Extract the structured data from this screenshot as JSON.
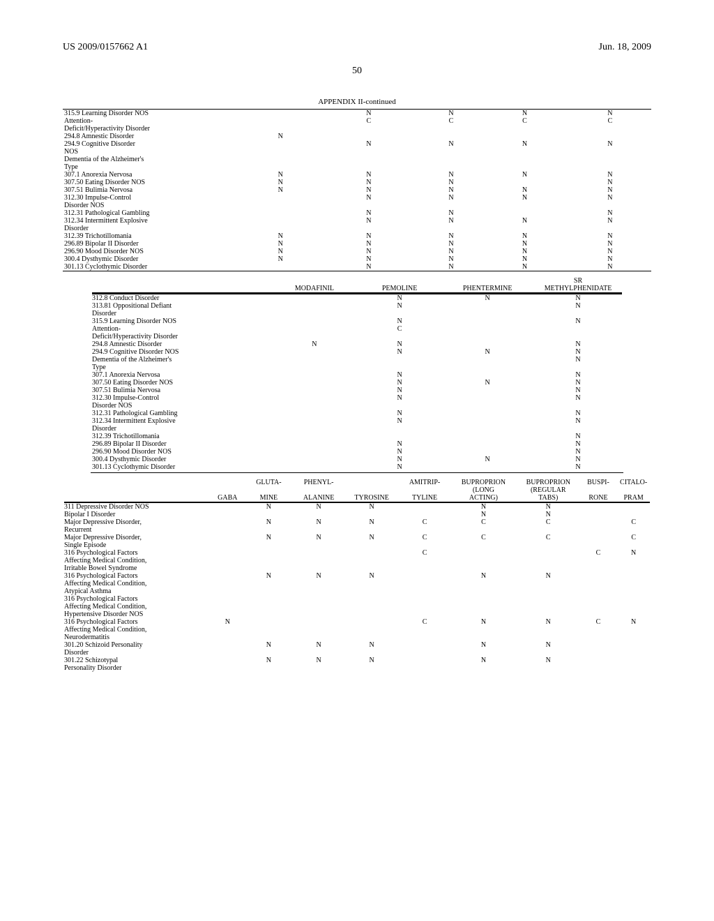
{
  "header": {
    "left": "US 2009/0157662 A1",
    "right": "Jun. 18, 2009"
  },
  "page_number": "50",
  "appendix_title": "APPENDIX II-continued",
  "table1": {
    "col_widths": [
      "31%",
      "12%",
      "18%",
      "10%",
      "15%",
      "14%"
    ],
    "rows": [
      {
        "d": "315.9 Learning Disorder NOS",
        "c": [
          "",
          "N",
          "N",
          "N",
          "N"
        ]
      },
      {
        "d": "Attention-",
        "c": [
          "",
          "C",
          "C",
          "C",
          "C"
        ]
      },
      {
        "d": "Deficit/Hyperactivity Disorder",
        "c": [
          "",
          "",
          "",
          "",
          ""
        ]
      },
      {
        "d": "294.8 Amnestic Disorder",
        "c": [
          "N",
          "",
          "",
          "",
          ""
        ]
      },
      {
        "d": "294.9 Cognitive Disorder",
        "c": [
          "",
          "N",
          "N",
          "N",
          "N"
        ]
      },
      {
        "d": "NOS",
        "c": [
          "",
          "",
          "",
          "",
          ""
        ]
      },
      {
        "d": "Dementia of the Alzheimer's",
        "c": [
          "",
          "",
          "",
          "",
          ""
        ]
      },
      {
        "d": "Type",
        "c": [
          "",
          "",
          "",
          "",
          ""
        ]
      },
      {
        "d": "307.1 Anorexia Nervosa",
        "c": [
          "N",
          "N",
          "N",
          "N",
          "N"
        ]
      },
      {
        "d": "307.50 Eating Disorder NOS",
        "c": [
          "N",
          "N",
          "N",
          "",
          "N"
        ]
      },
      {
        "d": "307.51 Bulimia Nervosa",
        "c": [
          "N",
          "N",
          "N",
          "N",
          "N"
        ]
      },
      {
        "d": "312.30 Impulse-Control",
        "c": [
          "",
          "N",
          "N",
          "N",
          "N"
        ]
      },
      {
        "d": "Disorder NOS",
        "c": [
          "",
          "",
          "",
          "",
          ""
        ]
      },
      {
        "d": "312.31 Pathological Gambling",
        "c": [
          "",
          "N",
          "N",
          "",
          "N"
        ]
      },
      {
        "d": "312.34 Intermittent Explosive",
        "c": [
          "",
          "N",
          "N",
          "N",
          "N"
        ]
      },
      {
        "d": "Disorder",
        "c": [
          "",
          "",
          "",
          "",
          ""
        ]
      },
      {
        "d": "312.39 Trichotillomania",
        "c": [
          "N",
          "N",
          "N",
          "N",
          "N"
        ]
      },
      {
        "d": "296.89 Bipolar II Disorder",
        "c": [
          "N",
          "N",
          "N",
          "N",
          "N"
        ]
      },
      {
        "d": "296.90 Mood Disorder NOS",
        "c": [
          "N",
          "N",
          "N",
          "N",
          "N"
        ]
      },
      {
        "d": "300.4 Dysthymic Disorder",
        "c": [
          "N",
          "N",
          "N",
          "N",
          "N"
        ]
      },
      {
        "d": "301.13 Cyclothymic Disorder",
        "c": [
          "",
          "N",
          "N",
          "N",
          "N"
        ]
      }
    ]
  },
  "table2": {
    "col_widths": [
      "34%",
      "16%",
      "16%",
      "17%",
      "17%"
    ],
    "headers_top": [
      "",
      "",
      "",
      "",
      "SR"
    ],
    "headers": [
      "",
      "MODAFINIL",
      "PEMOLINE",
      "PHENTERMINE",
      "METHYLPHENIDATE"
    ],
    "rows": [
      {
        "d": "312.8 Conduct Disorder",
        "c": [
          "",
          "N",
          "N",
          "N"
        ]
      },
      {
        "d": "313.81 Oppositional Defiant",
        "c": [
          "",
          "N",
          "",
          "N"
        ]
      },
      {
        "d": "Disorder",
        "c": [
          "",
          "",
          "",
          ""
        ]
      },
      {
        "d": "315.9 Learning Disorder NOS",
        "c": [
          "",
          "N",
          "",
          "N"
        ]
      },
      {
        "d": "Attention-",
        "c": [
          "",
          "C",
          "",
          ""
        ]
      },
      {
        "d": "Deficit/Hyperactivity Disorder",
        "c": [
          "",
          "",
          "",
          ""
        ]
      },
      {
        "d": "294.8 Amnestic Disorder",
        "c": [
          "N",
          "N",
          "",
          "N"
        ]
      },
      {
        "d": "294.9 Cognitive Disorder NOS",
        "c": [
          "",
          "N",
          "N",
          "N"
        ]
      },
      {
        "d": "Dementia of the Alzheimer's",
        "c": [
          "",
          "",
          "",
          "N"
        ]
      },
      {
        "d": "Type",
        "c": [
          "",
          "",
          "",
          ""
        ]
      },
      {
        "d": "307.1 Anorexia Nervosa",
        "c": [
          "",
          "N",
          "",
          "N"
        ]
      },
      {
        "d": "307.50 Eating Disorder NOS",
        "c": [
          "",
          "N",
          "N",
          "N"
        ]
      },
      {
        "d": "307.51 Bulimia Nervosa",
        "c": [
          "",
          "N",
          "",
          "N"
        ]
      },
      {
        "d": "312.30 Impulse-Control",
        "c": [
          "",
          "N",
          "",
          "N"
        ]
      },
      {
        "d": "Disorder NOS",
        "c": [
          "",
          "",
          "",
          ""
        ]
      },
      {
        "d": "312.31 Pathological Gambling",
        "c": [
          "",
          "N",
          "",
          "N"
        ]
      },
      {
        "d": "312.34 Intermittent Explosive",
        "c": [
          "",
          "N",
          "",
          "N"
        ]
      },
      {
        "d": "Disorder",
        "c": [
          "",
          "",
          "",
          ""
        ]
      },
      {
        "d": "312.39 Trichotillomania",
        "c": [
          "",
          "",
          "",
          "N"
        ]
      },
      {
        "d": "296.89 Bipolar II Disorder",
        "c": [
          "",
          "N",
          "",
          "N"
        ]
      },
      {
        "d": "296.90 Mood Disorder NOS",
        "c": [
          "",
          "N",
          "",
          "N"
        ]
      },
      {
        "d": "300.4 Dysthymic Disorder",
        "c": [
          "",
          "N",
          "N",
          "N"
        ]
      },
      {
        "d": "301.13 Cyclothymic Disorder",
        "c": [
          "",
          "N",
          "",
          "N"
        ]
      }
    ]
  },
  "table3": {
    "col_widths": [
      "25%",
      "6%",
      "8%",
      "9%",
      "9%",
      "9%",
      "11%",
      "11%",
      "6%",
      "6%"
    ],
    "headers_top": [
      "",
      "",
      "GLUTA-",
      "PHENYL-",
      "",
      "AMITRIP-",
      "BUPROPRION",
      "BUPROPRION",
      "BUSPI-",
      "CITALO-"
    ],
    "headers_mid": [
      "",
      "",
      "",
      "",
      "",
      "",
      "(LONG",
      "(REGULAR",
      "",
      ""
    ],
    "headers": [
      "",
      "GABA",
      "MINE",
      "ALANINE",
      "TYROSINE",
      "TYLINE",
      "ACTING)",
      "TABS)",
      "RONE",
      "PRAM"
    ],
    "rows": [
      {
        "d": "311 Depressive Disorder NOS",
        "c": [
          "",
          "N",
          "N",
          "N",
          "",
          "N",
          "N",
          "",
          ""
        ]
      },
      {
        "d": "Bipolar I Disorder",
        "c": [
          "",
          "",
          "",
          "",
          "",
          "N",
          "N",
          "",
          ""
        ]
      },
      {
        "d": "Major Depressive Disorder,",
        "c": [
          "",
          "N",
          "N",
          "N",
          "C",
          "C",
          "C",
          "",
          "C"
        ]
      },
      {
        "d": "Recurrent",
        "c": [
          "",
          "",
          "",
          "",
          "",
          "",
          "",
          "",
          ""
        ]
      },
      {
        "d": "Major Depressive Disorder,",
        "c": [
          "",
          "N",
          "N",
          "N",
          "C",
          "C",
          "C",
          "",
          "C"
        ]
      },
      {
        "d": "Single Episode",
        "c": [
          "",
          "",
          "",
          "",
          "",
          "",
          "",
          "",
          ""
        ]
      },
      {
        "d": "316 Psychological Factors",
        "c": [
          "",
          "",
          "",
          "",
          "C",
          "",
          "",
          "C",
          "N"
        ]
      },
      {
        "d": "Affecting Medical Condition,",
        "c": [
          "",
          "",
          "",
          "",
          "",
          "",
          "",
          "",
          ""
        ]
      },
      {
        "d": "Irritable Bowel Syndrome",
        "c": [
          "",
          "",
          "",
          "",
          "",
          "",
          "",
          "",
          ""
        ]
      },
      {
        "d": "316 Psychological Factors",
        "c": [
          "",
          "N",
          "N",
          "N",
          "",
          "N",
          "N",
          "",
          ""
        ]
      },
      {
        "d": "Affecting Medical Condition,",
        "c": [
          "",
          "",
          "",
          "",
          "",
          "",
          "",
          "",
          ""
        ]
      },
      {
        "d": "Atypical Asthma",
        "c": [
          "",
          "",
          "",
          "",
          "",
          "",
          "",
          "",
          ""
        ]
      },
      {
        "d": "316 Psychological Factors",
        "c": [
          "",
          "",
          "",
          "",
          "",
          "",
          "",
          "",
          ""
        ]
      },
      {
        "d": "Affecting Medical Condition,",
        "c": [
          "",
          "",
          "",
          "",
          "",
          "",
          "",
          "",
          ""
        ]
      },
      {
        "d": "Hypertensive Disorder NOS",
        "c": [
          "",
          "",
          "",
          "",
          "",
          "",
          "",
          "",
          ""
        ]
      },
      {
        "d": "316 Psychological Factors",
        "c": [
          "N",
          "",
          "",
          "",
          "C",
          "N",
          "N",
          "C",
          "N"
        ]
      },
      {
        "d": "Affecting Medical Condition,",
        "c": [
          "",
          "",
          "",
          "",
          "",
          "",
          "",
          "",
          ""
        ]
      },
      {
        "d": "Neurodermatitis",
        "c": [
          "",
          "",
          "",
          "",
          "",
          "",
          "",
          "",
          ""
        ]
      },
      {
        "d": "301.20 Schizoid Personality",
        "c": [
          "",
          "N",
          "N",
          "N",
          "",
          "N",
          "N",
          "",
          ""
        ]
      },
      {
        "d": "Disorder",
        "c": [
          "",
          "",
          "",
          "",
          "",
          "",
          "",
          "",
          ""
        ]
      },
      {
        "d": "301.22 Schizotypal",
        "c": [
          "",
          "N",
          "N",
          "N",
          "",
          "N",
          "N",
          "",
          ""
        ]
      },
      {
        "d": "Personality Disorder",
        "c": [
          "",
          "",
          "",
          "",
          "",
          "",
          "",
          "",
          ""
        ]
      }
    ]
  }
}
